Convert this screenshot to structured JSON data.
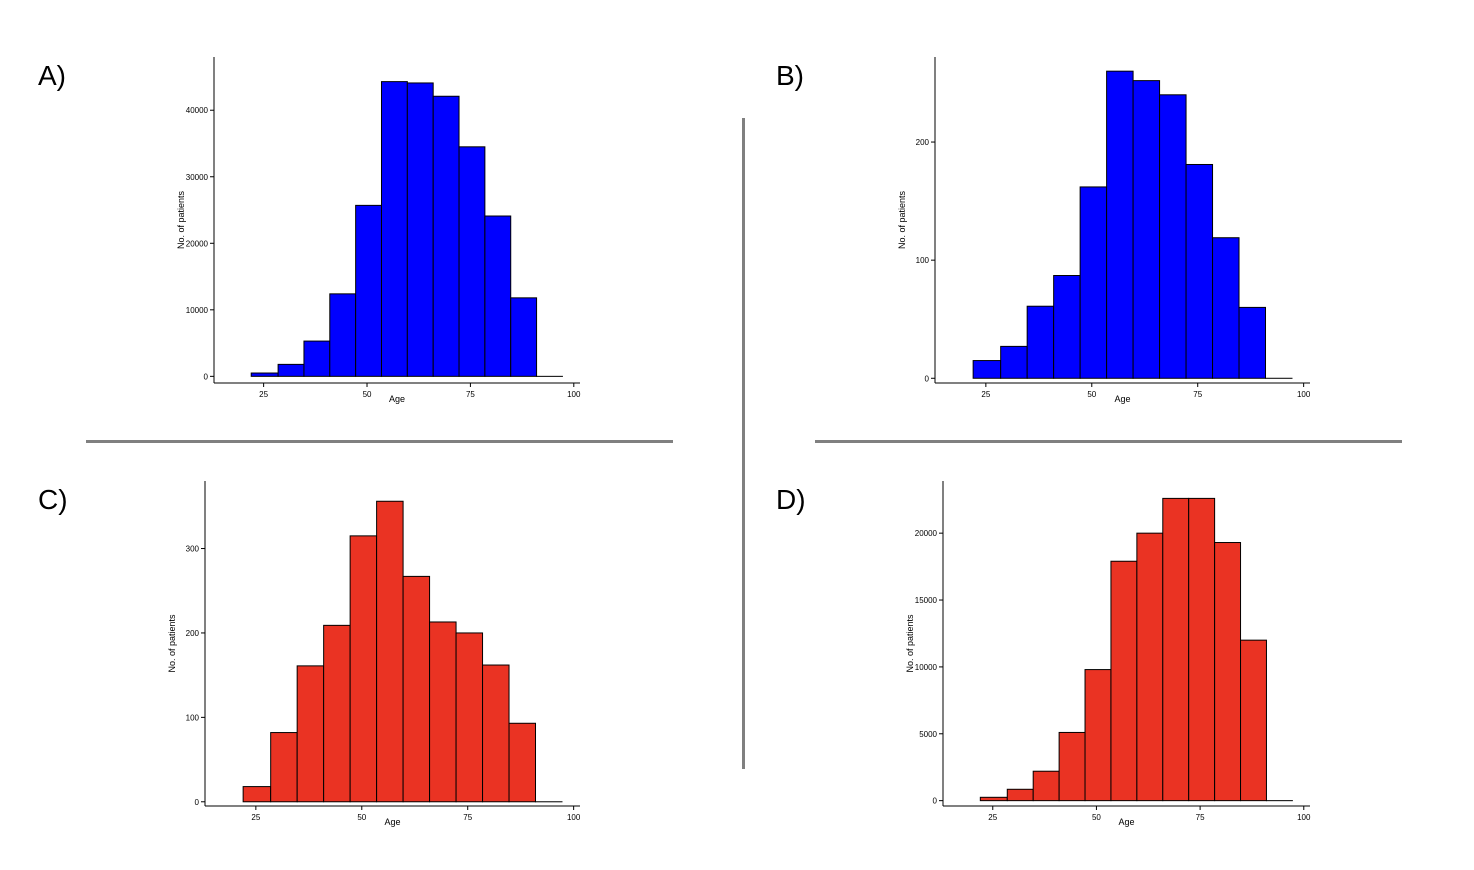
{
  "chart_data": [
    {
      "type": "bar",
      "panel_label": "A)",
      "title": "",
      "xlabel": "Age",
      "ylabel": "No. of patients",
      "color": "#0000FF",
      "xlim": [
        13,
        101.5
      ],
      "ylim": [
        -1000,
        48000
      ],
      "xticks": [
        25,
        50,
        75,
        100
      ],
      "yticks": [
        0,
        10000,
        20000,
        30000,
        40000
      ],
      "bin_edges": [
        22,
        28.5,
        34.75,
        41,
        47.25,
        53.5,
        59.75,
        66,
        72.25,
        78.5,
        84.75,
        91,
        97.25
      ],
      "values": [
        500,
        1800,
        5300,
        12400,
        25700,
        44300,
        44100,
        42100,
        34500,
        24100,
        11800,
        0
      ]
    },
    {
      "type": "bar",
      "panel_label": "B)",
      "title": "",
      "xlabel": "Age",
      "ylabel": "No. of patients",
      "color": "#0000FF",
      "xlim": [
        13,
        101.5
      ],
      "ylim": [
        -4,
        272
      ],
      "xticks": [
        25,
        50,
        75,
        100
      ],
      "yticks": [
        0,
        100,
        200
      ],
      "bin_edges": [
        22,
        28.5,
        34.75,
        41,
        47.25,
        53.5,
        59.75,
        66,
        72.25,
        78.5,
        84.75,
        91,
        97.25
      ],
      "values": [
        15,
        27,
        61,
        87,
        162,
        260,
        252,
        240,
        181,
        119,
        60,
        0
      ]
    },
    {
      "type": "bar",
      "panel_label": "C)",
      "title": "",
      "xlabel": "Age",
      "ylabel": "No. of patients",
      "color": "#EA3323",
      "xlim": [
        13,
        101.5
      ],
      "ylim": [
        -5,
        380
      ],
      "xticks": [
        25,
        50,
        75,
        100
      ],
      "yticks": [
        0,
        100,
        200,
        300
      ],
      "bin_edges": [
        22,
        28.5,
        34.75,
        41,
        47.25,
        53.5,
        59.75,
        66,
        72.25,
        78.5,
        84.75,
        91,
        97.25
      ],
      "values": [
        18,
        82,
        161,
        209,
        315,
        356,
        267,
        213,
        200,
        162,
        93,
        0
      ]
    },
    {
      "type": "bar",
      "panel_label": "D)",
      "title": "",
      "xlabel": "Age",
      "ylabel": "No. of patients",
      "color": "#EA3323",
      "xlim": [
        13,
        101.5
      ],
      "ylim": [
        -400,
        23900
      ],
      "xticks": [
        25,
        50,
        75,
        100
      ],
      "yticks": [
        0,
        5000,
        10000,
        15000,
        20000
      ],
      "bin_edges": [
        22,
        28.5,
        34.75,
        41,
        47.25,
        53.5,
        59.75,
        66,
        72.25,
        78.5,
        84.75,
        91,
        97.25
      ],
      "values": [
        250,
        850,
        2200,
        5100,
        9800,
        17900,
        20000,
        22600,
        22600,
        19300,
        12000,
        0
      ]
    }
  ]
}
